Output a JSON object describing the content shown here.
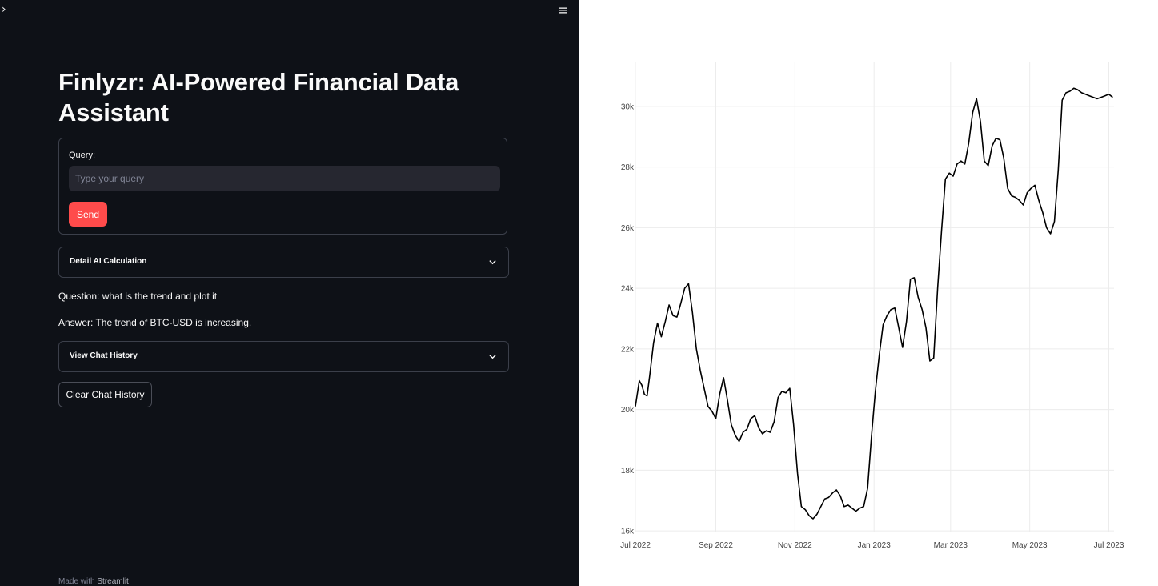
{
  "app": {
    "sidebar_toggle_glyph": "›",
    "menu_glyph": "≡",
    "title": "Finlyzr: AI-Powered Financial Data Assistant"
  },
  "form": {
    "query_label": "Query:",
    "query_placeholder": "Type your query",
    "query_value": "",
    "send_label": "Send"
  },
  "expanders": {
    "detail_label": "Detail AI Calculation",
    "history_label": "View Chat History"
  },
  "conversation": {
    "question": "Question: what is the trend and plot it",
    "answer": "Answer: The trend of BTC-USD is increasing."
  },
  "clear_history_label": "Clear Chat History",
  "footer": {
    "prefix": "Made with",
    "link": "Streamlit"
  },
  "colors": {
    "app_background": "#0e1117",
    "accent": "#ff4b4b",
    "line": "#000000"
  },
  "icons": [
    "chevron-right-icon",
    "hamburger-menu-icon",
    "chevron-down-icon"
  ],
  "chart_data": {
    "type": "line",
    "title": "",
    "xlabel": "",
    "ylabel": "",
    "x_ticks": [
      "Jul 2022",
      "Sep 2022",
      "Nov 2022",
      "Jan 2023",
      "Mar 2023",
      "May 2023",
      "Jul 2023"
    ],
    "y_ticks": [
      "16k",
      "18k",
      "20k",
      "22k",
      "24k",
      "26k",
      "28k",
      "30k"
    ],
    "ylim": [
      15950,
      31450
    ],
    "xlim": [
      "2022-07-01",
      "2023-07-05"
    ],
    "grid": true,
    "series": [
      {
        "x": [
          "2022-07-01",
          "2022-07-04",
          "2022-07-06",
          "2022-07-08",
          "2022-07-10",
          "2022-07-12",
          "2022-07-15",
          "2022-07-18",
          "2022-07-21",
          "2022-07-24",
          "2022-07-27",
          "2022-07-30",
          "2022-08-02",
          "2022-08-05",
          "2022-08-08",
          "2022-08-11",
          "2022-08-14",
          "2022-08-17",
          "2022-08-20",
          "2022-08-23",
          "2022-08-26",
          "2022-08-29",
          "2022-09-01",
          "2022-09-04",
          "2022-09-07",
          "2022-09-10",
          "2022-09-13",
          "2022-09-16",
          "2022-09-19",
          "2022-09-22",
          "2022-09-25",
          "2022-09-28",
          "2022-10-01",
          "2022-10-04",
          "2022-10-07",
          "2022-10-10",
          "2022-10-13",
          "2022-10-16",
          "2022-10-19",
          "2022-10-22",
          "2022-10-25",
          "2022-10-28",
          "2022-10-31",
          "2022-11-03",
          "2022-11-06",
          "2022-11-09",
          "2022-11-12",
          "2022-11-15",
          "2022-11-18",
          "2022-11-21",
          "2022-11-24",
          "2022-11-27",
          "2022-11-30",
          "2022-12-03",
          "2022-12-06",
          "2022-12-09",
          "2022-12-12",
          "2022-12-15",
          "2022-12-18",
          "2022-12-21",
          "2022-12-24",
          "2022-12-27",
          "2022-12-30",
          "2023-01-02",
          "2023-01-05",
          "2023-01-08",
          "2023-01-11",
          "2023-01-14",
          "2023-01-17",
          "2023-01-20",
          "2023-01-23",
          "2023-01-26",
          "2023-01-29",
          "2023-02-01",
          "2023-02-04",
          "2023-02-07",
          "2023-02-10",
          "2023-02-13",
          "2023-02-16",
          "2023-02-19",
          "2023-02-22",
          "2023-02-25",
          "2023-02-28",
          "2023-03-03",
          "2023-03-06",
          "2023-03-09",
          "2023-03-12",
          "2023-03-15",
          "2023-03-18",
          "2023-03-21",
          "2023-03-24",
          "2023-03-27",
          "2023-03-30",
          "2023-04-02",
          "2023-04-05",
          "2023-04-08",
          "2023-04-11",
          "2023-04-14",
          "2023-04-17",
          "2023-04-20",
          "2023-04-23",
          "2023-04-26",
          "2023-04-29",
          "2023-05-02",
          "2023-05-05",
          "2023-05-08",
          "2023-05-11",
          "2023-05-14",
          "2023-05-17",
          "2023-05-20",
          "2023-05-23",
          "2023-05-26",
          "2023-05-29",
          "2023-06-01",
          "2023-06-04",
          "2023-06-07",
          "2023-06-10",
          "2023-06-13",
          "2023-06-16",
          "2023-06-19",
          "2023-06-22",
          "2023-06-25",
          "2023-06-28",
          "2023-07-01",
          "2023-07-04"
        ],
        "y": [
          20100,
          20950,
          20800,
          20500,
          20450,
          21100,
          22200,
          22850,
          22400,
          22900,
          23450,
          23100,
          23050,
          23500,
          24000,
          24150,
          23200,
          22000,
          21300,
          20700,
          20100,
          19950,
          19700,
          20500,
          21050,
          20300,
          19500,
          19150,
          18950,
          19250,
          19350,
          19700,
          19800,
          19400,
          19200,
          19300,
          19250,
          19600,
          20400,
          20600,
          20550,
          20700,
          19500,
          17900,
          16800,
          16700,
          16500,
          16400,
          16550,
          16800,
          17050,
          17100,
          17250,
          17350,
          17150,
          16800,
          16850,
          16750,
          16650,
          16750,
          16800,
          17400,
          19100,
          20600,
          21800,
          22800,
          23100,
          23300,
          23350,
          22700,
          22050,
          22900,
          24300,
          24350,
          23700,
          23300,
          22700,
          21600,
          21700,
          24000,
          25900,
          27600,
          27800,
          27700,
          28100,
          28200,
          28100,
          28800,
          29800,
          30250,
          29500,
          28200,
          28050,
          28700,
          28950,
          28900,
          28300,
          27300,
          27050,
          27000,
          26900,
          26750,
          27150,
          27300,
          27400,
          26900,
          26500,
          26000,
          25800,
          26200,
          27900,
          30200,
          30450,
          30500,
          30600,
          30550,
          30450,
          30400,
          30350,
          30300,
          30250,
          30300,
          30350,
          30400,
          30300
        ]
      }
    ]
  }
}
